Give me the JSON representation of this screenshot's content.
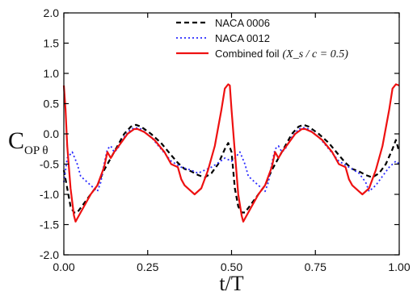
{
  "chart_data": {
    "type": "line",
    "xlabel": "t/T",
    "ylabel": "C",
    "ylabel_sub": "OP θ",
    "xlim": [
      0.0,
      1.0
    ],
    "ylim": [
      -2.0,
      2.0
    ],
    "xticks": [
      0.0,
      0.25,
      0.5,
      0.75,
      1.0
    ],
    "xtick_labels": [
      "0.00",
      "0.25",
      "0.50",
      "0.75",
      "1.00"
    ],
    "yticks": [
      -2.0,
      -1.5,
      -1.0,
      -0.5,
      0.0,
      0.5,
      1.0,
      1.5,
      2.0
    ],
    "ytick_labels": [
      "-2.0",
      "-1.5",
      "-1.0",
      "-0.5",
      "0.0",
      "0.5",
      "1.0",
      "1.5",
      "2.0"
    ],
    "grid": false,
    "legend_position": "top-right",
    "series": [
      {
        "name": "NACA 0006",
        "color": "#000000",
        "dash": "dashed",
        "points": [
          [
            0.0,
            -0.6
          ],
          [
            0.01,
            -0.9
          ],
          [
            0.02,
            -1.2
          ],
          [
            0.03,
            -1.3
          ],
          [
            0.04,
            -1.3
          ],
          [
            0.06,
            -1.15
          ],
          [
            0.08,
            -1.0
          ],
          [
            0.1,
            -0.85
          ],
          [
            0.12,
            -0.6
          ],
          [
            0.14,
            -0.4
          ],
          [
            0.16,
            -0.2
          ],
          [
            0.18,
            0.0
          ],
          [
            0.2,
            0.12
          ],
          [
            0.215,
            0.15
          ],
          [
            0.23,
            0.12
          ],
          [
            0.26,
            0.0
          ],
          [
            0.29,
            -0.15
          ],
          [
            0.32,
            -0.35
          ],
          [
            0.34,
            -0.48
          ],
          [
            0.36,
            -0.58
          ],
          [
            0.38,
            -0.62
          ],
          [
            0.4,
            -0.68
          ],
          [
            0.42,
            -0.72
          ],
          [
            0.44,
            -0.65
          ],
          [
            0.46,
            -0.5
          ],
          [
            0.48,
            -0.25
          ],
          [
            0.49,
            -0.15
          ],
          [
            0.5,
            -0.3
          ],
          [
            0.51,
            -0.9
          ],
          [
            0.52,
            -1.2
          ],
          [
            0.53,
            -1.3
          ],
          [
            0.54,
            -1.3
          ],
          [
            0.56,
            -1.15
          ],
          [
            0.58,
            -1.0
          ],
          [
            0.6,
            -0.85
          ],
          [
            0.62,
            -0.6
          ],
          [
            0.64,
            -0.4
          ],
          [
            0.66,
            -0.2
          ],
          [
            0.68,
            0.0
          ],
          [
            0.7,
            0.12
          ],
          [
            0.715,
            0.15
          ],
          [
            0.73,
            0.12
          ],
          [
            0.76,
            0.0
          ],
          [
            0.79,
            -0.15
          ],
          [
            0.82,
            -0.35
          ],
          [
            0.84,
            -0.48
          ],
          [
            0.86,
            -0.58
          ],
          [
            0.88,
            -0.62
          ],
          [
            0.9,
            -0.68
          ],
          [
            0.92,
            -0.72
          ],
          [
            0.94,
            -0.65
          ],
          [
            0.96,
            -0.5
          ],
          [
            0.98,
            -0.25
          ],
          [
            0.99,
            -0.1
          ],
          [
            1.0,
            -0.3
          ]
        ]
      },
      {
        "name": "NACA 0012",
        "color": "#2a2aff",
        "dash": "dotted",
        "points": [
          [
            0.0,
            -0.8
          ],
          [
            0.01,
            -0.4
          ],
          [
            0.025,
            -0.3
          ],
          [
            0.04,
            -0.5
          ],
          [
            0.05,
            -0.7
          ],
          [
            0.07,
            -0.8
          ],
          [
            0.09,
            -0.9
          ],
          [
            0.1,
            -0.95
          ],
          [
            0.11,
            -0.8
          ],
          [
            0.12,
            -0.5
          ],
          [
            0.13,
            -0.25
          ],
          [
            0.14,
            -0.2
          ],
          [
            0.15,
            -0.3
          ],
          [
            0.16,
            -0.25
          ],
          [
            0.18,
            -0.05
          ],
          [
            0.2,
            0.08
          ],
          [
            0.215,
            0.1
          ],
          [
            0.23,
            0.08
          ],
          [
            0.26,
            -0.05
          ],
          [
            0.29,
            -0.25
          ],
          [
            0.32,
            -0.45
          ],
          [
            0.35,
            -0.55
          ],
          [
            0.38,
            -0.6
          ],
          [
            0.4,
            -0.65
          ],
          [
            0.42,
            -0.6
          ],
          [
            0.44,
            -0.55
          ],
          [
            0.46,
            -0.48
          ],
          [
            0.48,
            -0.4
          ],
          [
            0.5,
            -0.45
          ],
          [
            0.51,
            -0.4
          ],
          [
            0.525,
            -0.3
          ],
          [
            0.54,
            -0.5
          ],
          [
            0.55,
            -0.7
          ],
          [
            0.57,
            -0.8
          ],
          [
            0.59,
            -0.9
          ],
          [
            0.6,
            -0.95
          ],
          [
            0.61,
            -0.8
          ],
          [
            0.62,
            -0.5
          ],
          [
            0.63,
            -0.25
          ],
          [
            0.64,
            -0.2
          ],
          [
            0.65,
            -0.3
          ],
          [
            0.66,
            -0.25
          ],
          [
            0.68,
            -0.05
          ],
          [
            0.7,
            0.08
          ],
          [
            0.715,
            0.1
          ],
          [
            0.73,
            0.08
          ],
          [
            0.76,
            -0.05
          ],
          [
            0.79,
            -0.25
          ],
          [
            0.82,
            -0.45
          ],
          [
            0.85,
            -0.55
          ],
          [
            0.88,
            -0.65
          ],
          [
            0.9,
            -0.8
          ],
          [
            0.91,
            -0.95
          ],
          [
            0.93,
            -0.85
          ],
          [
            0.95,
            -0.7
          ],
          [
            0.97,
            -0.55
          ],
          [
            0.99,
            -0.45
          ],
          [
            1.0,
            -0.5
          ]
        ]
      },
      {
        "name": "Combined foil",
        "legend_math": "(X_s / c = 0.5)",
        "color": "#ee1111",
        "dash": "solid",
        "points": [
          [
            0.0,
            0.8
          ],
          [
            0.005,
            0.4
          ],
          [
            0.01,
            -0.2
          ],
          [
            0.02,
            -0.9
          ],
          [
            0.03,
            -1.35
          ],
          [
            0.035,
            -1.45
          ],
          [
            0.04,
            -1.4
          ],
          [
            0.06,
            -1.2
          ],
          [
            0.08,
            -1.0
          ],
          [
            0.1,
            -0.85
          ],
          [
            0.12,
            -0.55
          ],
          [
            0.13,
            -0.3
          ],
          [
            0.14,
            -0.4
          ],
          [
            0.15,
            -0.3
          ],
          [
            0.17,
            -0.15
          ],
          [
            0.19,
            0.0
          ],
          [
            0.21,
            0.08
          ],
          [
            0.22,
            0.08
          ],
          [
            0.24,
            0.03
          ],
          [
            0.27,
            -0.1
          ],
          [
            0.3,
            -0.3
          ],
          [
            0.32,
            -0.5
          ],
          [
            0.34,
            -0.55
          ],
          [
            0.35,
            -0.75
          ],
          [
            0.36,
            -0.85
          ],
          [
            0.38,
            -0.95
          ],
          [
            0.39,
            -1.0
          ],
          [
            0.41,
            -0.9
          ],
          [
            0.43,
            -0.6
          ],
          [
            0.45,
            -0.2
          ],
          [
            0.47,
            0.4
          ],
          [
            0.48,
            0.75
          ],
          [
            0.49,
            0.82
          ],
          [
            0.495,
            0.8
          ],
          [
            0.5,
            0.4
          ],
          [
            0.51,
            -0.3
          ],
          [
            0.52,
            -1.0
          ],
          [
            0.53,
            -1.35
          ],
          [
            0.535,
            -1.45
          ],
          [
            0.54,
            -1.4
          ],
          [
            0.56,
            -1.2
          ],
          [
            0.58,
            -1.0
          ],
          [
            0.6,
            -0.85
          ],
          [
            0.62,
            -0.55
          ],
          [
            0.63,
            -0.3
          ],
          [
            0.64,
            -0.4
          ],
          [
            0.65,
            -0.3
          ],
          [
            0.67,
            -0.15
          ],
          [
            0.69,
            0.0
          ],
          [
            0.71,
            0.08
          ],
          [
            0.72,
            0.08
          ],
          [
            0.74,
            0.03
          ],
          [
            0.77,
            -0.1
          ],
          [
            0.8,
            -0.3
          ],
          [
            0.82,
            -0.5
          ],
          [
            0.84,
            -0.55
          ],
          [
            0.85,
            -0.75
          ],
          [
            0.86,
            -0.85
          ],
          [
            0.88,
            -0.95
          ],
          [
            0.89,
            -1.0
          ],
          [
            0.91,
            -0.9
          ],
          [
            0.93,
            -0.6
          ],
          [
            0.95,
            -0.2
          ],
          [
            0.97,
            0.4
          ],
          [
            0.98,
            0.75
          ],
          [
            0.99,
            0.82
          ],
          [
            1.0,
            0.8
          ]
        ]
      }
    ]
  }
}
